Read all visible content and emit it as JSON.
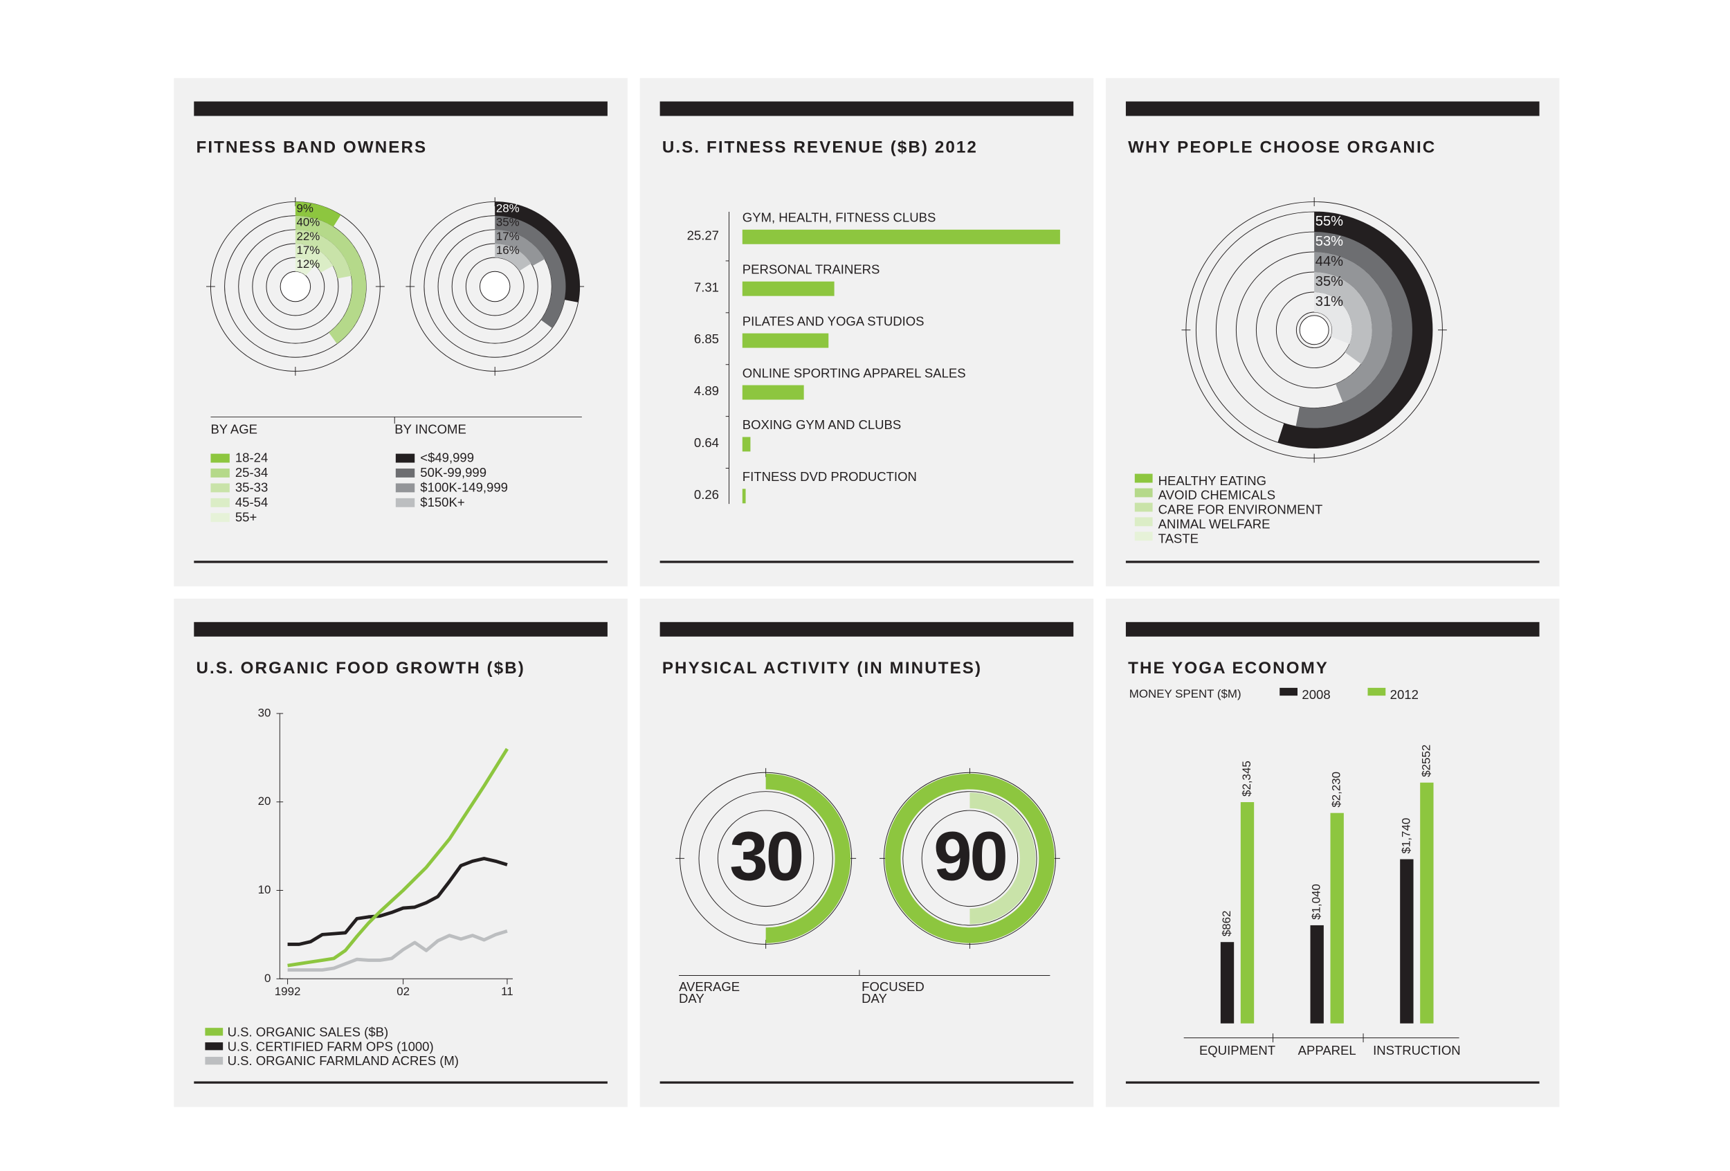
{
  "chart_data": [
    {
      "type": "radial-pair",
      "title": "FITNESS BAND OWNERS",
      "groups": [
        {
          "name": "BY AGE",
          "categories": [
            "18-24",
            "25-34",
            "35-33",
            "45-54",
            "55+"
          ],
          "values": [
            9,
            40,
            22,
            17,
            12
          ],
          "value_labels": [
            "9%",
            "40%",
            "22%",
            "17%",
            "12%"
          ],
          "colors": [
            "#8dc63f",
            "#b5d98a",
            "#c9e3a9",
            "#dbedc6",
            "#e6f2d8"
          ]
        },
        {
          "name": "BY INCOME",
          "categories": [
            "<$49,999",
            "50K-99,999",
            "$100K-149,999",
            "$150K+"
          ],
          "values": [
            28,
            35,
            17,
            16
          ],
          "value_labels": [
            "28%",
            "35%",
            "17%",
            "16%"
          ],
          "colors": [
            "#231f20",
            "#6d6e71",
            "#939598",
            "#bcbec0"
          ]
        }
      ]
    },
    {
      "type": "hbar",
      "title": "U.S. FITNESS REVENUE ($B) 2012",
      "categories": [
        "GYM, HEALTH, FITNESS CLUBS",
        "PERSONAL TRAINERS",
        "PILATES AND YOGA STUDIOS",
        "ONLINE SPORTING APPAREL SALES",
        "BOXING GYM AND CLUBS",
        "FITNESS DVD PRODUCTION"
      ],
      "values": [
        25.27,
        7.31,
        6.85,
        4.89,
        0.64,
        0.26
      ],
      "color": "#8dc63f"
    },
    {
      "type": "radial",
      "title": "WHY PEOPLE CHOOSE ORGANIC",
      "categories": [
        "HEALTHY EATING",
        "AVOID CHEMICALS",
        "CARE FOR ENVIRONMENT",
        "ANIMAL WELFARE",
        "TASTE"
      ],
      "values": [
        55,
        53,
        44,
        35,
        31
      ],
      "value_labels": [
        "55%",
        "53%",
        "44%",
        "35%",
        "31%"
      ],
      "colors": [
        "#231f20",
        "#6d6e71",
        "#939598",
        "#bcbec0",
        "#e6e7e8"
      ],
      "legend_colors": [
        "#8dc63f",
        "#b5d98a",
        "#c9e3a9",
        "#dbedc6",
        "#e6f2d8"
      ]
    },
    {
      "type": "line",
      "title": "U.S. ORGANIC FOOD GROWTH ($B)",
      "x": [
        1992,
        1993,
        1994,
        1995,
        1996,
        1997,
        1998,
        1999,
        2000,
        2001,
        2002,
        2003,
        2004,
        2005,
        2006,
        2007,
        2008,
        2009,
        2010,
        2011
      ],
      "xlim": [
        1992,
        2011
      ],
      "xticks": [
        1992,
        {
          "value": 2002,
          "label": "02"
        },
        {
          "value": 2011,
          "label": "11"
        }
      ],
      "ylim": [
        0,
        30
      ],
      "yticks": [
        0,
        10,
        20,
        30
      ],
      "series": [
        {
          "name": "U.S. ORGANIC SALES ($B)",
          "color": "#8dc63f",
          "values": [
            1.5,
            1.7,
            1.9,
            2.1,
            2.3,
            3.2,
            4.8,
            6.3,
            7.6,
            8.8,
            10.0,
            11.3,
            12.6,
            14.2,
            15.8,
            17.8,
            19.8,
            21.8,
            23.9,
            26.0
          ]
        },
        {
          "name": "U.S. CERTIFIED FARM OPS (1000)",
          "color": "#231f20",
          "values": [
            3.9,
            3.9,
            4.2,
            5.0,
            5.1,
            5.2,
            6.8,
            7.0,
            7.1,
            7.5,
            8.0,
            8.1,
            8.6,
            9.3,
            11.0,
            12.8,
            13.3,
            13.6,
            13.3,
            12.9
          ]
        },
        {
          "name": "U.S. ORGANIC FARMLAND ACRES (M)",
          "color": "#bcbec0",
          "values": [
            1.0,
            1.0,
            1.0,
            1.0,
            1.2,
            1.7,
            2.2,
            2.1,
            2.1,
            2.3,
            3.3,
            4.1,
            3.2,
            4.3,
            4.9,
            4.5,
            4.9,
            4.4,
            5.0,
            5.4
          ]
        }
      ]
    },
    {
      "type": "dial",
      "title": "PHYSICAL ACTIVITY (IN MINUTES)",
      "categories": [
        "AVERAGE DAY",
        "FOCUSED DAY"
      ],
      "values": [
        30,
        90
      ],
      "colors": [
        "#8dc63f",
        "#c9e3a9"
      ]
    },
    {
      "type": "grouped-bar",
      "title": "THE YOGA ECONOMY",
      "subtitle": "MONEY SPENT ($M)",
      "categories": [
        "EQUIPMENT",
        "APPAREL",
        "INSTRUCTION"
      ],
      "series": [
        {
          "name": "2008",
          "color": "#231f20",
          "values": [
            862,
            1040,
            1740
          ],
          "value_labels": [
            "$862",
            "$1,040",
            "$1,740"
          ]
        },
        {
          "name": "2012",
          "color": "#8dc63f",
          "values": [
            2345,
            2230,
            2552
          ],
          "value_labels": [
            "$2,345",
            "$2,230",
            "$2552"
          ]
        }
      ]
    }
  ]
}
